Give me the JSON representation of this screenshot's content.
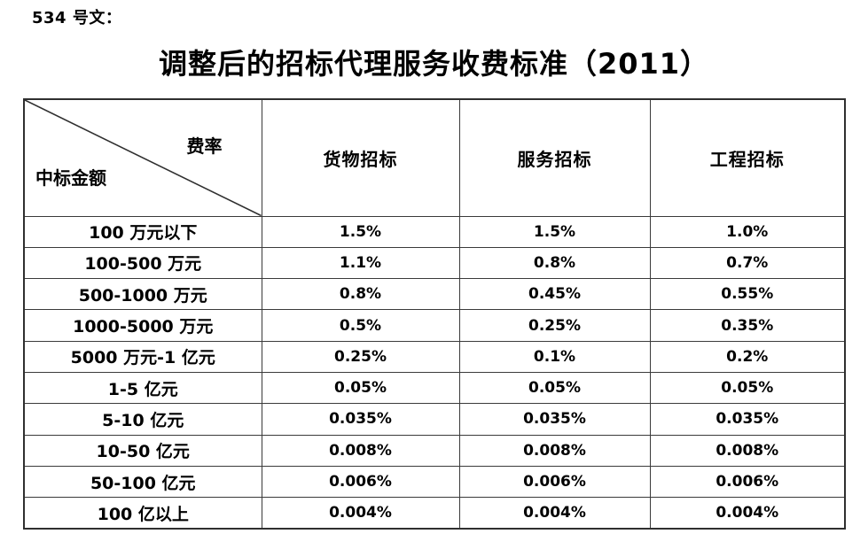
{
  "page": {
    "doc_label": "534 号文：",
    "title": "调整后的招标代理服务收费标准（2011）"
  },
  "table": {
    "corner": {
      "top_right": "费率",
      "bottom_left": "中标金额"
    },
    "columns": [
      "货物招标",
      "服务招标",
      "工程招标"
    ],
    "rows": [
      {
        "label": "100 万元以下",
        "values": [
          "1.5%",
          "1.5%",
          "1.0%"
        ]
      },
      {
        "label": "100-500 万元",
        "values": [
          "1.1%",
          "0.8%",
          "0.7%"
        ]
      },
      {
        "label": "500-1000 万元",
        "values": [
          "0.8%",
          "0.45%",
          "0.55%"
        ]
      },
      {
        "label": "1000-5000 万元",
        "values": [
          "0.5%",
          "0.25%",
          "0.35%"
        ]
      },
      {
        "label": "5000 万元-1 亿元",
        "values": [
          "0.25%",
          "0.1%",
          "0.2%"
        ]
      },
      {
        "label": "1-5 亿元",
        "values": [
          "0.05%",
          "0.05%",
          "0.05%"
        ]
      },
      {
        "label": "5-10 亿元",
        "values": [
          "0.035%",
          "0.035%",
          "0.035%"
        ]
      },
      {
        "label": "10-50 亿元",
        "values": [
          "0.008%",
          "0.008%",
          "0.008%"
        ]
      },
      {
        "label": "50-100 亿元",
        "values": [
          "0.006%",
          "0.006%",
          "0.006%"
        ]
      },
      {
        "label": "100 亿以上",
        "values": [
          "0.004%",
          "0.004%",
          "0.004%"
        ]
      }
    ],
    "border_color": "#3a3a3a",
    "text_color": "#000000"
  }
}
